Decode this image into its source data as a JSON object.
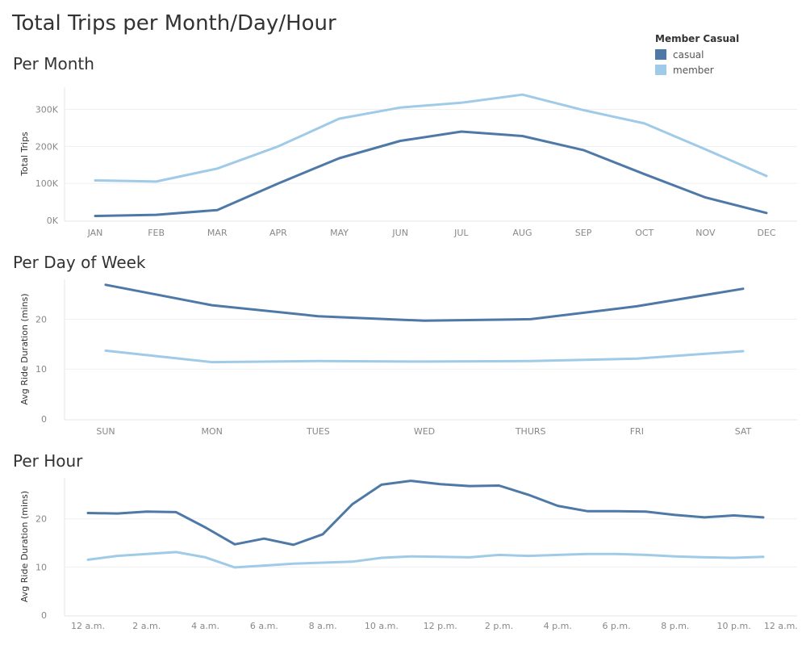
{
  "page_title": "Total Trips per Month/Day/Hour",
  "legend": {
    "title": "Member Casual",
    "items": [
      {
        "label": "casual",
        "color": "#4e79a7"
      },
      {
        "label": "member",
        "color": "#a0cbe8"
      }
    ]
  },
  "chart_data": [
    {
      "type": "line",
      "title": "Per Month",
      "ylabel": "Total Trips",
      "xlabel": "",
      "categories": [
        "JAN",
        "FEB",
        "MAR",
        "APR",
        "MAY",
        "JUN",
        "JUL",
        "AUG",
        "SEP",
        "OCT",
        "NOV",
        "DEC"
      ],
      "yticks": [
        0,
        100000,
        200000,
        300000
      ],
      "ytick_labels": [
        "0K",
        "100K",
        "200K",
        "300K"
      ],
      "ylim": [
        0,
        360000
      ],
      "grid": true,
      "series": [
        {
          "name": "casual",
          "color": "#4e79a7",
          "values": [
            12000,
            15000,
            28000,
            100000,
            168000,
            215000,
            240000,
            228000,
            190000,
            125000,
            62000,
            20000
          ]
        },
        {
          "name": "member",
          "color": "#a0cbe8",
          "values": [
            108000,
            105000,
            140000,
            200000,
            275000,
            305000,
            318000,
            340000,
            298000,
            262000,
            192000,
            120000
          ]
        }
      ]
    },
    {
      "type": "line",
      "title": "Per Day of Week",
      "ylabel": "Avg Ride Duration (mins)",
      "xlabel": "",
      "categories": [
        "SUN",
        "MON",
        "TUES",
        "WED",
        "THURS",
        "FRI",
        "SAT"
      ],
      "yticks": [
        0,
        10,
        20
      ],
      "ytick_labels": [
        "0",
        "10",
        "20"
      ],
      "ylim": [
        0,
        28
      ],
      "grid": true,
      "series": [
        {
          "name": "casual",
          "color": "#4e79a7",
          "values": [
            26.9,
            22.8,
            20.6,
            19.7,
            20.0,
            22.6,
            26.1
          ]
        },
        {
          "name": "member",
          "color": "#a0cbe8",
          "values": [
            13.7,
            11.4,
            11.6,
            11.5,
            11.6,
            12.1,
            13.6
          ]
        }
      ]
    },
    {
      "type": "line",
      "title": "Per Hour",
      "ylabel": "Avg Ride Duration (mins)",
      "xlabel": "",
      "categories": [
        0,
        1,
        2,
        3,
        4,
        5,
        6,
        7,
        8,
        9,
        10,
        11,
        12,
        13,
        14,
        15,
        16,
        17,
        18,
        19,
        20,
        21,
        22,
        23
      ],
      "xtick_labels": [
        "12 a.m.",
        "2 a.m.",
        "4 a.m.",
        "6 a.m.",
        "8 a.m.",
        "10 a.m.",
        "12 p.m.",
        "2 p.m.",
        "4 p.m.",
        "6 p.m.",
        "8 p.m.",
        "10 p.m.",
        "12 a.m."
      ],
      "xtick_positions": [
        0,
        2,
        4,
        6,
        8,
        10,
        12,
        14,
        16,
        18,
        20,
        22,
        23.6
      ],
      "yticks": [
        0,
        10,
        20
      ],
      "ytick_labels": [
        "0",
        "10",
        "20"
      ],
      "ylim": [
        0,
        28.5
      ],
      "grid": true,
      "series": [
        {
          "name": "casual",
          "color": "#4e79a7",
          "values": [
            21.2,
            21.1,
            21.5,
            21.4,
            18.2,
            14.7,
            15.9,
            14.6,
            16.8,
            23.0,
            27.1,
            27.9,
            27.2,
            26.8,
            26.9,
            25.0,
            22.7,
            21.6,
            21.6,
            21.5,
            20.8,
            20.3,
            20.7,
            20.3
          ]
        },
        {
          "name": "member",
          "color": "#a0cbe8",
          "values": [
            11.5,
            12.3,
            12.7,
            13.1,
            12.0,
            9.9,
            10.3,
            10.7,
            10.9,
            11.1,
            11.9,
            12.2,
            12.1,
            12.0,
            12.5,
            12.3,
            12.5,
            12.7,
            12.7,
            12.5,
            12.2,
            12.0,
            11.9,
            12.1
          ]
        }
      ]
    }
  ]
}
